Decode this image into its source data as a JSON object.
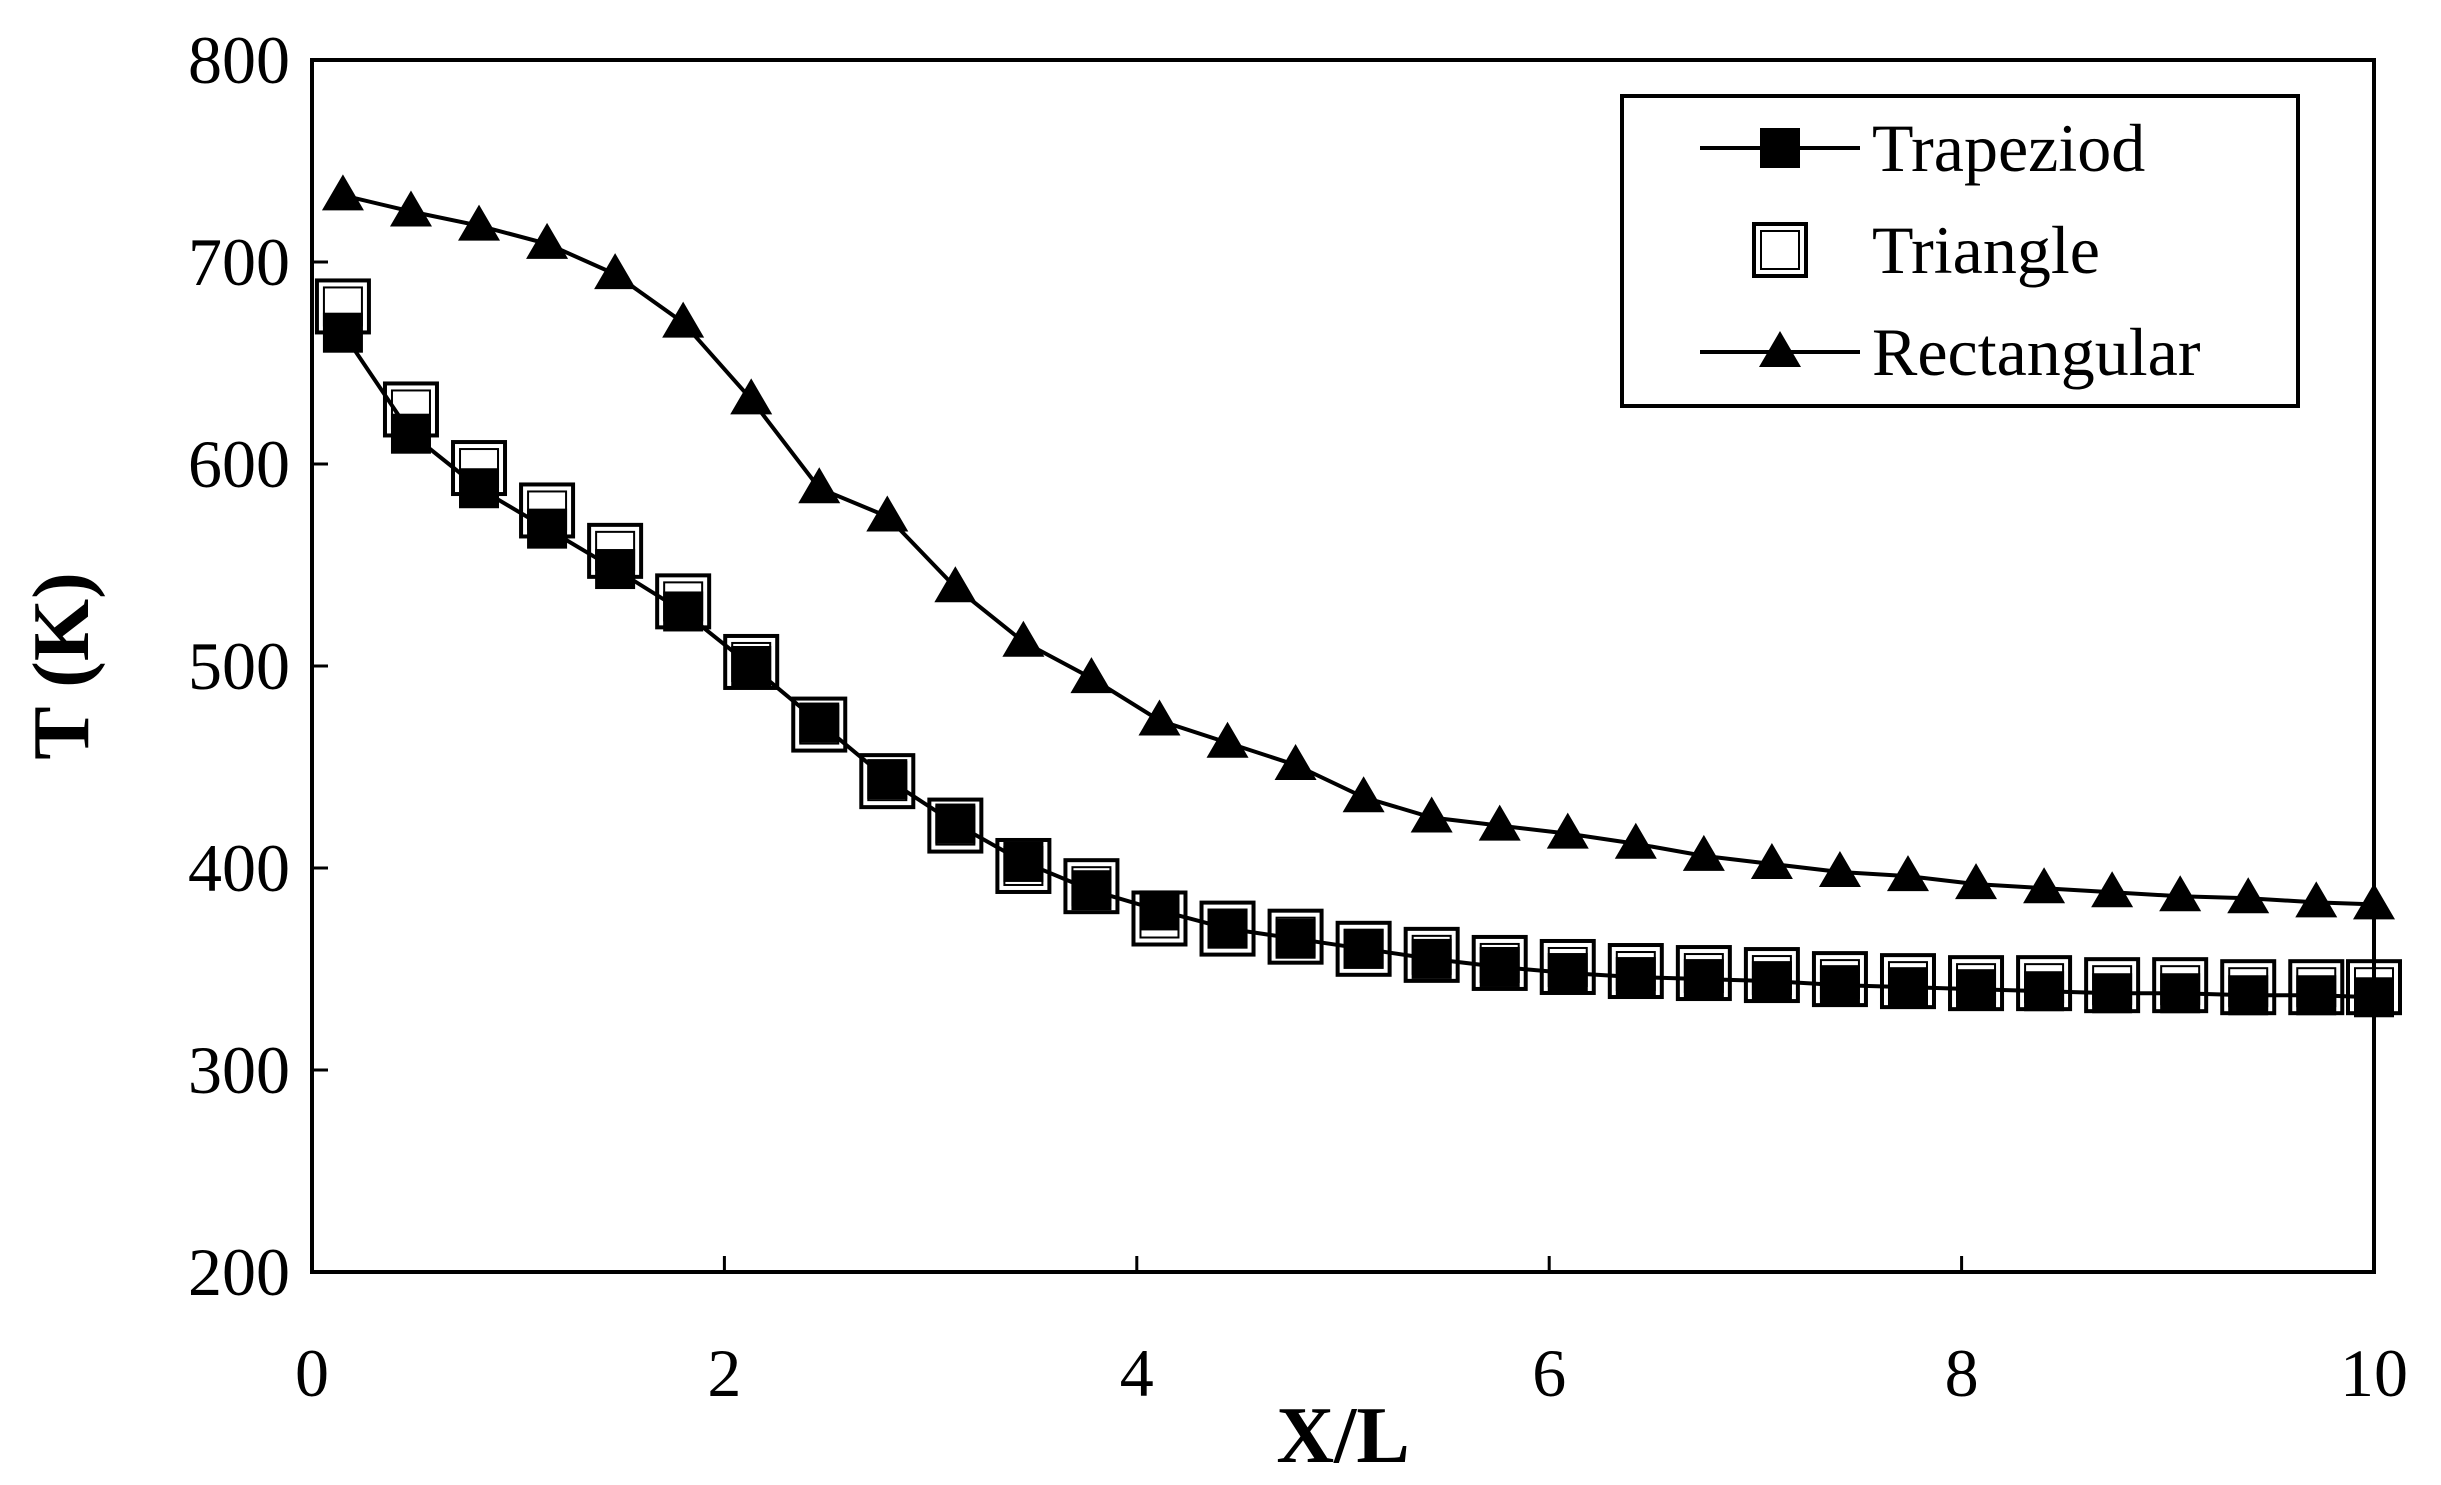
{
  "chart_data": {
    "type": "line",
    "title": "",
    "xlabel": "X/L",
    "ylabel": "T (K)",
    "xlim": [
      0,
      10
    ],
    "ylim": [
      200,
      800
    ],
    "xticks": [
      0,
      2,
      4,
      6,
      8,
      10
    ],
    "yticks": [
      200,
      300,
      400,
      500,
      600,
      700,
      800
    ],
    "grid": false,
    "legend_position": "top-right",
    "x": [
      0.15,
      0.48,
      0.81,
      1.14,
      1.47,
      1.8,
      2.13,
      2.46,
      2.79,
      3.12,
      3.45,
      3.78,
      4.11,
      4.44,
      4.77,
      5.1,
      5.43,
      5.76,
      6.09,
      6.42,
      6.75,
      7.08,
      7.41,
      7.74,
      8.07,
      8.4,
      8.73,
      9.06,
      9.39,
      9.72,
      10.0
    ],
    "series": [
      {
        "name": "Trapeziod",
        "marker": "filled-square",
        "line": true,
        "values": [
          665,
          615,
          588,
          568,
          548,
          527,
          500,
          472,
          444,
          422,
          403,
          389,
          379,
          370,
          365,
          360,
          355,
          351,
          348,
          346,
          345,
          344,
          342,
          341,
          340,
          339,
          338,
          338,
          337,
          337,
          336
        ]
      },
      {
        "name": "Triangle",
        "marker": "open-square",
        "line": false,
        "values": [
          678,
          627,
          598,
          577,
          557,
          532,
          502,
          471,
          443,
          421,
          401,
          391,
          375,
          370,
          366,
          360,
          357,
          353,
          351,
          349,
          348,
          347,
          345,
          344,
          343,
          343,
          342,
          342,
          341,
          341,
          341
        ]
      },
      {
        "name": "Rectangular",
        "marker": "filled-triangle",
        "line": true,
        "values": [
          733,
          725,
          718,
          709,
          694,
          670,
          632,
          588,
          574,
          539,
          512,
          494,
          473,
          462,
          451,
          435,
          425,
          421,
          417,
          412,
          406,
          402,
          398,
          396,
          392,
          390,
          388,
          386,
          385,
          383,
          382
        ]
      }
    ]
  },
  "colors": {
    "foreground": "#000000",
    "background": "#ffffff"
  }
}
